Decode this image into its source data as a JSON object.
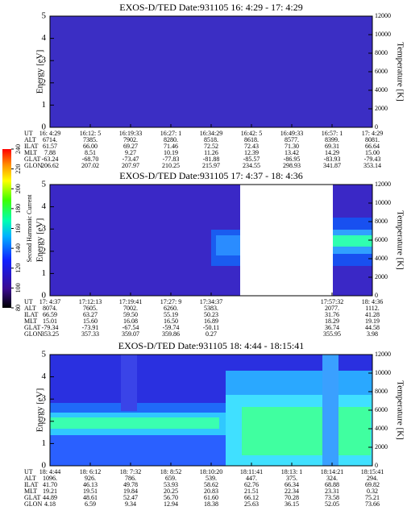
{
  "chart_data": [
    {
      "type": "spectrogram",
      "title": "EXOS-D/TED   Date:931105  16: 4:29 - 17: 4:29",
      "ylabel": "Energy [eV]",
      "y2label": "Temperature [K]",
      "ylim": [
        0,
        5
      ],
      "yticks": [
        0,
        1,
        2,
        3,
        4,
        5
      ],
      "y2lim": [
        0,
        12000
      ],
      "y2ticks": [
        0,
        2000,
        4000,
        6000,
        8000,
        10000,
        12000
      ],
      "ephemeris": [
        {
          "name": "UT",
          "values": [
            "16: 4:29",
            "16:12: 5",
            "16:19:33",
            "16:27: 1",
            "16:34:29",
            "16:42: 5",
            "16:49:33",
            "16:57: 1",
            "17: 4:29"
          ]
        },
        {
          "name": "ALT",
          "values": [
            "6714.",
            "7385.",
            "7902.",
            "8280.",
            "8518.",
            "8618.",
            "8577.",
            "8399.",
            "8081."
          ]
        },
        {
          "name": "ILAT",
          "values": [
            "61.57",
            "66.00",
            "69.27",
            "71.46",
            "72.52",
            "72.43",
            "71.30",
            "69.31",
            "66.64"
          ]
        },
        {
          "name": "MLT",
          "values": [
            "7.88",
            "8.51",
            "9.27",
            "10.19",
            "11.26",
            "12.39",
            "13.42",
            "14.29",
            "15.00"
          ]
        },
        {
          "name": "GLAT",
          "values": [
            "-63.24",
            "-68.70",
            "-73.47",
            "-77.83",
            "-81.88",
            "-85.57",
            "-86.95",
            "-83.93",
            "-79.43"
          ]
        },
        {
          "name": "GLON",
          "values": [
            "206.62",
            "207.02",
            "207.97",
            "210.25",
            "215.97",
            "234.55",
            "298.93",
            "341.87",
            "353.14"
          ]
        }
      ]
    },
    {
      "type": "spectrogram",
      "title": "EXOS-D/TED   Date:931105  17: 4:37 - 18: 4:36",
      "ylabel": "Energy [eV]",
      "y2label": "Temperature [K]",
      "ylim": [
        0,
        5
      ],
      "yticks": [
        0,
        1,
        2,
        3,
        4,
        5
      ],
      "y2lim": [
        0,
        12000
      ],
      "y2ticks": [
        0,
        2000,
        4000,
        6000,
        8000,
        10000,
        12000
      ],
      "colorbar": {
        "label": "Second Harmonic Current",
        "lim": [
          80,
          240
        ],
        "ticks": [
          80,
          100,
          120,
          140,
          160,
          180,
          200,
          220,
          240
        ]
      },
      "ephemeris": [
        {
          "name": "UT",
          "values": [
            "17: 4:37",
            "17:12:13",
            "17:19:41",
            "17:27: 9",
            "17:34:37",
            null,
            null,
            "17:57:32",
            "18: 4:36"
          ]
        },
        {
          "name": "ALT",
          "values": [
            "8074.",
            "7605.",
            "7002.",
            "6260.",
            "5383.",
            null,
            null,
            "2077.",
            "1112."
          ]
        },
        {
          "name": "ILAT",
          "values": [
            "66.59",
            "63.27",
            "59.50",
            "55.19",
            "50.23",
            null,
            null,
            "31.76",
            "41.28"
          ]
        },
        {
          "name": "MLT",
          "values": [
            "15.01",
            "15.60",
            "16.08",
            "16.50",
            "16.89",
            null,
            null,
            "18.29",
            "19.19"
          ]
        },
        {
          "name": "GLAT",
          "values": [
            "-79.34",
            "-73.91",
            "-67.54",
            "-59.74",
            "-50.11",
            null,
            null,
            "36.74",
            "44.58"
          ]
        },
        {
          "name": "GLON",
          "values": [
            "353.25",
            "357.33",
            "359.07",
            "359.86",
            "0.27",
            null,
            null,
            "355.95",
            "3.98"
          ]
        }
      ]
    },
    {
      "type": "spectrogram",
      "title": "EXOS-D/TED   Date:931105  18: 4:44 - 18:15:41",
      "ylabel": "Energy [eV]",
      "y2label": "Temperature [K]",
      "ylim": [
        0,
        5
      ],
      "yticks": [
        0,
        1,
        2,
        3,
        4,
        5
      ],
      "y2lim": [
        0,
        12000
      ],
      "y2ticks": [
        0,
        2000,
        4000,
        6000,
        8000,
        10000,
        12000
      ],
      "ephemeris": [
        {
          "name": "UT",
          "values": [
            "18: 4:44",
            "18: 6:12",
            "18: 7:32",
            "18: 8:52",
            "18:10:20",
            "18:11:41",
            "18:13: 1",
            "18:14:21",
            "18:15:41"
          ]
        },
        {
          "name": "ALT",
          "values": [
            "1096.",
            "926.",
            "786.",
            "659.",
            "539.",
            "447.",
            "375.",
            "324.",
            "294."
          ]
        },
        {
          "name": "ILAT",
          "values": [
            "41.70",
            "46.13",
            "49.78",
            "53.93",
            "58.62",
            "62.76",
            "66.34",
            "68.88",
            "69.82"
          ]
        },
        {
          "name": "MLT",
          "values": [
            "19.21",
            "19.51",
            "19.84",
            "20.25",
            "20.83",
            "21.51",
            "22.34",
            "23.31",
            "0.32"
          ]
        },
        {
          "name": "GLAT",
          "values": [
            "44.89",
            "48.61",
            "52.47",
            "56.70",
            "61.60",
            "66.12",
            "70.28",
            "73.58",
            "75.21"
          ]
        },
        {
          "name": "GLON",
          "values": [
            "4.18",
            "6.59",
            "9.34",
            "12.94",
            "18.38",
            "25.63",
            "36.15",
            "52.05",
            "73.66"
          ]
        }
      ]
    }
  ]
}
